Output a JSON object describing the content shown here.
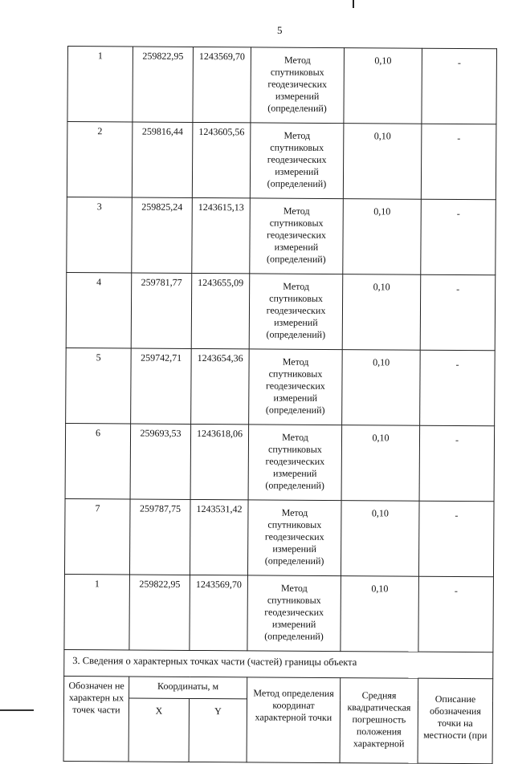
{
  "page_number": "5",
  "rows": [
    {
      "point": "1",
      "x": "259822,95",
      "y": "1243569,70",
      "method": [
        "Метод",
        "спутниковых",
        "геодезических",
        "измерений",
        "(определений)"
      ],
      "accuracy": "0,10",
      "description": "-"
    },
    {
      "point": "2",
      "x": "259816,44",
      "y": "1243605,56",
      "method": [
        "Метод",
        "спутниковых",
        "геодезических",
        "измерений",
        "(определений)"
      ],
      "accuracy": "0,10",
      "description": "-"
    },
    {
      "point": "3",
      "x": "259825,24",
      "y": "1243615,13",
      "method": [
        "Метод",
        "спутниковых",
        "геодезических",
        "измерений",
        "(определений)"
      ],
      "accuracy": "0,10",
      "description": "-"
    },
    {
      "point": "4",
      "x": "259781,77",
      "y": "1243655,09",
      "method": [
        "Метод",
        "спутниковых",
        "геодезических",
        "измерений",
        "(определений)"
      ],
      "accuracy": "0,10",
      "description": "-"
    },
    {
      "point": "5",
      "x": "259742,71",
      "y": "1243654,36",
      "method": [
        "Метод",
        "спутниковых",
        "геодезических",
        "измерений",
        "(определений)"
      ],
      "accuracy": "0,10",
      "description": "-"
    },
    {
      "point": "6",
      "x": "259693,53",
      "y": "1243618,06",
      "method": [
        "Метод",
        "спутниковых",
        "геодезических",
        "измерений",
        "(определений)"
      ],
      "accuracy": "0,10",
      "description": "-"
    },
    {
      "point": "7",
      "x": "259787,75",
      "y": "1243531,42",
      "method": [
        "Метод",
        "спутниковых",
        "геодезических",
        "измерений",
        "(определений)"
      ],
      "accuracy": "0,10",
      "description": "-"
    },
    {
      "point": "1",
      "x": "259822,95",
      "y": "1243569,70",
      "method": [
        "Метод",
        "спутниковых",
        "геодезических",
        "измерений",
        "(определений)"
      ],
      "accuracy": "0,10",
      "description": "-"
    }
  ],
  "section3": {
    "title": "3. Сведения о характерных точках части (частей) границы объекта",
    "headers": {
      "designation": "Обозначен не характерн ых точек части",
      "coordinates": "Координаты, м",
      "x": "X",
      "y": "Y",
      "method": "Метод определения координат характерной точки",
      "accuracy": "Средняя квадратическая погрешность положения характерной",
      "description": "Описание обозначения точки на местности (при"
    }
  }
}
